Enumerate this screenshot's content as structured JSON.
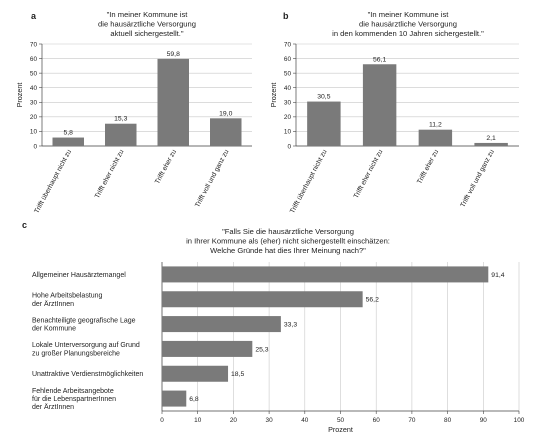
{
  "chart_data": [
    {
      "panel": "a",
      "type": "bar",
      "title_lines": [
        "\"In meiner Kommune ist",
        "die hausärztliche Versorgung",
        "aktuell sichergestellt.\""
      ],
      "ylabel": "Prozent",
      "xlabel": "",
      "ylim": [
        0,
        70
      ],
      "yticks": [
        0,
        10,
        20,
        30,
        40,
        50,
        60,
        70
      ],
      "categories": [
        "Trifft überhaupt nicht zu",
        "Trifft eher nicht zu",
        "Trifft eher zu",
        "Trifft voll und ganz zu"
      ],
      "values": [
        5.8,
        15.3,
        59.8,
        19.0
      ],
      "value_labels": [
        "5,8",
        "15,3",
        "59,8",
        "19,0"
      ],
      "grid": true,
      "bar_color": "#7a7a7a"
    },
    {
      "panel": "b",
      "type": "bar",
      "title_lines": [
        "\"In meiner Kommune ist",
        "die hausärztliche Versorgung",
        "in den kommenden 10 Jahren sichergestellt.\""
      ],
      "ylabel": "Prozent",
      "xlabel": "",
      "ylim": [
        0,
        70
      ],
      "yticks": [
        0,
        10,
        20,
        30,
        40,
        50,
        60,
        70
      ],
      "categories": [
        "Trifft überhaupt nicht zu",
        "Trifft eher nicht zu",
        "Trifft eher zu",
        "Trifft voll und ganz zu"
      ],
      "values": [
        30.5,
        56.1,
        11.2,
        2.1
      ],
      "value_labels": [
        "30,5",
        "56,1",
        "11,2",
        "2,1"
      ],
      "grid": true,
      "bar_color": "#7a7a7a"
    },
    {
      "panel": "c",
      "type": "bar",
      "orientation": "horizontal",
      "title_lines": [
        "\"Falls Sie die hausärztliche Versorgung",
        "in Ihrer Kommune als (eher) nicht sichergestellt einschätzen:",
        "Welche Gründe hat dies Ihrer Meinung nach?\""
      ],
      "xlabel": "Prozent",
      "ylabel": "",
      "xlim": [
        0,
        100
      ],
      "xticks": [
        0,
        10,
        20,
        30,
        40,
        50,
        60,
        70,
        80,
        90,
        100
      ],
      "categories": [
        [
          "Allgemeiner Hausärztemangel"
        ],
        [
          "Hohe Arbeitsbelastung",
          "der ÄrztInnen"
        ],
        [
          "Benachteiligte geografische Lage",
          "der Kommune"
        ],
        [
          "Lokale Unterversorgung auf Grund",
          "zu großer Planungsbereiche"
        ],
        [
          "Unattraktive Verdienstmöglichkeiten"
        ],
        [
          "Fehlende Arbeitsangebote",
          "für die LebenspartnerInnen",
          "der ÄrztInnen"
        ]
      ],
      "values": [
        91.4,
        56.2,
        33.3,
        25.3,
        18.5,
        6.8
      ],
      "value_labels": [
        "91,4",
        "56,2",
        "33,3",
        "25,3",
        "18,5",
        "6,8"
      ],
      "grid": true,
      "bar_color": "#7a7a7a"
    }
  ]
}
